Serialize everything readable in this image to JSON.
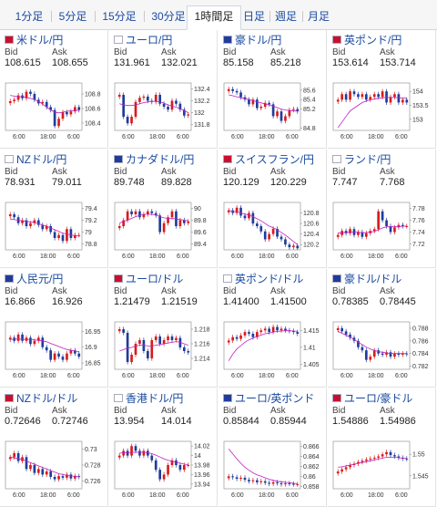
{
  "tabs": [
    {
      "label": "1分足",
      "active": false
    },
    {
      "label": "5分足",
      "active": false
    },
    {
      "label": "15分足",
      "active": false
    },
    {
      "label": "30分足",
      "active": false
    },
    {
      "label": "1時間足",
      "active": true
    },
    {
      "label": "日足",
      "active": false
    },
    {
      "label": "週足",
      "active": false
    },
    {
      "label": "月足",
      "active": false
    }
  ],
  "bid_label": "Bid",
  "ask_label": "Ask",
  "x_ticks": [
    "6:00",
    "18:00",
    "6:00"
  ],
  "colors": {
    "up": "#d81b1b",
    "down": "#1f3c9c",
    "ma": "#c020c0",
    "link": "#1a4aa0"
  },
  "pairs": [
    {
      "title": "米ドル/円",
      "bid": "108.615",
      "ask": "108.655",
      "y_ticks": [
        "108.8",
        "108.6",
        "108.4"
      ],
      "y_range": [
        108.3,
        108.95
      ],
      "close": [
        108.7,
        108.72,
        108.78,
        108.74,
        108.83,
        108.8,
        108.72,
        108.67,
        108.69,
        108.62,
        108.58,
        108.36,
        108.46,
        108.55,
        108.52,
        108.56,
        108.62,
        108.58
      ],
      "ma": [
        108.78,
        108.77,
        108.76,
        108.76,
        108.75,
        108.74,
        108.72,
        108.7,
        108.66,
        108.62,
        108.58,
        108.55,
        108.54,
        108.55,
        108.56,
        108.57,
        108.57,
        108.58
      ]
    },
    {
      "title": "ユーロ/円",
      "bid": "131.961",
      "ask": "132.021",
      "y_ticks": [
        "132.4",
        "132.2",
        "132",
        "131.8"
      ],
      "y_range": [
        131.7,
        132.5
      ],
      "close": [
        132.3,
        131.93,
        131.82,
        131.93,
        132.18,
        132.25,
        132.27,
        132.2,
        132.18,
        132.3,
        132.15,
        132.1,
        132.05,
        132.2,
        132.15,
        132.05,
        131.95,
        131.97
      ],
      "ma": [
        132.15,
        132.13,
        132.12,
        132.12,
        132.13,
        132.15,
        132.17,
        132.18,
        132.19,
        132.19,
        132.18,
        132.16,
        132.13,
        132.11,
        132.09,
        132.07,
        132.03,
        132.0
      ]
    },
    {
      "title": "豪ドル/円",
      "bid": "85.158",
      "ask": "85.218",
      "y_ticks": [
        "85.6",
        "85.4",
        "85.2",
        "84.8"
      ],
      "y_range": [
        84.75,
        85.75
      ],
      "close": [
        85.62,
        85.58,
        85.55,
        85.45,
        85.4,
        85.3,
        85.4,
        85.22,
        85.25,
        85.33,
        85.3,
        85.05,
        85.15,
        84.95,
        85.05,
        85.18,
        85.2,
        85.15
      ],
      "ma": [
        85.5,
        85.48,
        85.46,
        85.44,
        85.42,
        85.4,
        85.38,
        85.35,
        85.33,
        85.31,
        85.29,
        85.26,
        85.23,
        85.2,
        85.18,
        85.17,
        85.16,
        85.16
      ]
    },
    {
      "title": "英ポンド/円",
      "bid": "153.614",
      "ask": "153.714",
      "y_ticks": [
        "154",
        "153.5",
        "153"
      ],
      "y_range": [
        152.6,
        154.3
      ],
      "close": [
        153.7,
        153.9,
        153.7,
        154.0,
        153.9,
        153.8,
        153.9,
        153.7,
        153.8,
        153.9,
        153.8,
        154.0,
        153.6,
        153.8,
        153.9,
        153.6,
        153.7,
        153.6
      ],
      "ma": [
        152.7,
        152.9,
        153.1,
        153.3,
        153.4,
        153.5,
        153.6,
        153.65,
        153.7,
        153.72,
        153.75,
        153.77,
        153.78,
        153.78,
        153.78,
        153.77,
        153.76,
        153.75
      ]
    },
    {
      "title": "NZドル/円",
      "bid": "78.931",
      "ask": "79.011",
      "y_ticks": [
        "79.4",
        "79.2",
        "79",
        "78.8"
      ],
      "y_range": [
        78.7,
        79.5
      ],
      "close": [
        79.3,
        79.25,
        79.15,
        79.2,
        79.1,
        79.15,
        79.2,
        79.12,
        79.05,
        79.1,
        79.0,
        78.9,
        78.95,
        78.85,
        79.05,
        78.9,
        78.95,
        78.95
      ],
      "ma": [
        79.22,
        79.21,
        79.2,
        79.19,
        79.18,
        79.17,
        79.16,
        79.14,
        79.12,
        79.1,
        79.07,
        79.04,
        79.01,
        78.98,
        78.97,
        78.95,
        78.94,
        78.94
      ]
    },
    {
      "title": "カナダドル/円",
      "bid": "89.748",
      "ask": "89.828",
      "y_ticks": [
        "90",
        "89.8",
        "89.6",
        "89.4"
      ],
      "y_range": [
        89.3,
        90.1
      ],
      "close": [
        89.7,
        89.8,
        89.95,
        89.9,
        89.95,
        89.85,
        89.9,
        89.95,
        89.92,
        89.88,
        89.6,
        89.75,
        89.85,
        89.95,
        89.7,
        89.8,
        89.75,
        89.78
      ],
      "ma": [
        89.75,
        89.78,
        89.8,
        89.83,
        89.86,
        89.88,
        89.9,
        89.9,
        89.9,
        89.89,
        89.86,
        89.84,
        89.83,
        89.83,
        89.82,
        89.81,
        89.8,
        89.79
      ]
    },
    {
      "title": "スイスフラン/円",
      "bid": "120.129",
      "ask": "120.229",
      "y_ticks": [
        "120.8",
        "120.6",
        "120.4",
        "120.2"
      ],
      "y_range": [
        120.1,
        121.0
      ],
      "close": [
        120.85,
        120.8,
        120.9,
        120.75,
        120.7,
        120.8,
        120.6,
        120.55,
        120.45,
        120.3,
        120.4,
        120.5,
        120.35,
        120.3,
        120.2,
        120.15,
        120.18,
        120.13
      ],
      "ma": [
        120.85,
        120.83,
        120.82,
        120.8,
        120.78,
        120.76,
        120.73,
        120.69,
        120.65,
        120.6,
        120.55,
        120.52,
        120.48,
        120.43,
        120.38,
        120.32,
        120.26,
        120.2
      ]
    },
    {
      "title": "ランド/円",
      "bid": "7.747",
      "ask": "7.768",
      "y_ticks": [
        "7.78",
        "7.76",
        "7.74",
        "7.72"
      ],
      "y_range": [
        7.71,
        7.79
      ],
      "close": [
        7.735,
        7.742,
        7.738,
        7.745,
        7.735,
        7.74,
        7.732,
        7.738,
        7.742,
        7.745,
        7.775,
        7.76,
        7.75,
        7.74,
        7.748,
        7.752,
        7.75,
        7.75
      ],
      "ma": [
        7.738,
        7.739,
        7.739,
        7.74,
        7.74,
        7.74,
        7.739,
        7.739,
        7.74,
        7.741,
        7.744,
        7.747,
        7.749,
        7.749,
        7.749,
        7.749,
        7.75,
        7.75
      ]
    },
    {
      "title": "人民元/円",
      "bid": "16.866",
      "ask": "16.926",
      "y_ticks": [
        "16.95",
        "16.9",
        "16.85"
      ],
      "y_range": [
        16.83,
        16.98
      ],
      "close": [
        16.93,
        16.92,
        16.94,
        16.92,
        16.93,
        16.91,
        16.92,
        16.93,
        16.9,
        16.89,
        16.86,
        16.88,
        16.87,
        16.86,
        16.88,
        16.89,
        16.88,
        16.87
      ],
      "ma": [
        16.925,
        16.925,
        16.926,
        16.925,
        16.925,
        16.924,
        16.923,
        16.922,
        16.92,
        16.917,
        16.912,
        16.907,
        16.902,
        16.897,
        16.893,
        16.89,
        16.888,
        16.886
      ]
    },
    {
      "title": "ユーロ/ドル",
      "bid": "1.21479",
      "ask": "1.21519",
      "y_ticks": [
        "1.218",
        "1.216",
        "1.214"
      ],
      "y_range": [
        1.2125,
        1.219
      ],
      "close": [
        1.218,
        1.2175,
        1.2135,
        1.2145,
        1.216,
        1.2165,
        1.215,
        1.214,
        1.2165,
        1.217,
        1.216,
        1.2165,
        1.217,
        1.2165,
        1.2168,
        1.2155,
        1.215,
        1.2148
      ],
      "ma": [
        1.215,
        1.2152,
        1.2154,
        1.2155,
        1.2157,
        1.2158,
        1.2158,
        1.2157,
        1.2157,
        1.2158,
        1.2159,
        1.216,
        1.2161,
        1.2162,
        1.2163,
        1.2162,
        1.216,
        1.2158
      ]
    },
    {
      "title": "英ポンド/ドル",
      "bid": "1.41400",
      "ask": "1.41500",
      "y_ticks": [
        "1.415",
        "1.41",
        "1.405"
      ],
      "y_range": [
        1.4035,
        1.4175
      ],
      "close": [
        1.412,
        1.413,
        1.4125,
        1.4135,
        1.4145,
        1.414,
        1.413,
        1.4145,
        1.415,
        1.4155,
        1.4145,
        1.416,
        1.415,
        1.4155,
        1.415,
        1.4148,
        1.4145,
        1.414
      ],
      "ma": [
        1.406,
        1.408,
        1.4095,
        1.4105,
        1.4115,
        1.4122,
        1.4127,
        1.4132,
        1.4136,
        1.414,
        1.4142,
        1.4145,
        1.4147,
        1.4148,
        1.4149,
        1.4149,
        1.4148,
        1.4147
      ]
    },
    {
      "title": "豪ドル/ドル",
      "bid": "0.78385",
      "ask": "0.78445",
      "y_ticks": [
        "0.788",
        "0.786",
        "0.784",
        "0.782"
      ],
      "y_range": [
        0.7815,
        0.789
      ],
      "close": [
        0.788,
        0.7875,
        0.787,
        0.7865,
        0.786,
        0.785,
        0.7845,
        0.783,
        0.7835,
        0.7845,
        0.784,
        0.7838,
        0.7842,
        0.7835,
        0.784,
        0.7838,
        0.784,
        0.7839
      ],
      "ma": [
        0.7875,
        0.7872,
        0.7869,
        0.7866,
        0.7862,
        0.7858,
        0.7854,
        0.785,
        0.7847,
        0.7845,
        0.7843,
        0.7842,
        0.7841,
        0.784,
        0.784,
        0.784,
        0.784,
        0.784
      ]
    },
    {
      "title": "NZドル/ドル",
      "bid": "0.72646",
      "ask": "0.72746",
      "y_ticks": [
        "0.73",
        "0.728",
        "0.726"
      ],
      "y_range": [
        0.725,
        0.731
      ],
      "close": [
        0.729,
        0.7295,
        0.7285,
        0.729,
        0.7275,
        0.728,
        0.727,
        0.7275,
        0.7268,
        0.7272,
        0.7265,
        0.7262,
        0.7266,
        0.7264,
        0.7268,
        0.7263,
        0.7266,
        0.7265
      ],
      "ma": [
        0.729,
        0.7289,
        0.7288,
        0.7287,
        0.7285,
        0.7283,
        0.7281,
        0.7279,
        0.7277,
        0.7275,
        0.7273,
        0.7271,
        0.7269,
        0.7268,
        0.7267,
        0.7266,
        0.7266,
        0.7265
      ]
    },
    {
      "title": "香港ドル/円",
      "bid": "13.954",
      "ask": "14.014",
      "y_ticks": [
        "14.02",
        "14",
        "13.98",
        "13.96",
        "13.94"
      ],
      "y_range": [
        13.93,
        14.03
      ],
      "close": [
        14.0,
        14.01,
        14.0,
        14.02,
        14.01,
        14.0,
        14.01,
        14.0,
        13.99,
        13.97,
        13.95,
        13.96,
        13.98,
        13.99,
        13.98,
        13.97,
        13.98,
        13.98
      ],
      "ma": [
        14.005,
        14.006,
        14.006,
        14.007,
        14.007,
        14.007,
        14.007,
        14.006,
        14.004,
        14.001,
        13.997,
        13.993,
        13.99,
        13.988,
        13.986,
        13.984,
        13.982,
        13.981
      ]
    },
    {
      "title": "ユーロ/英ポンド",
      "bid": "0.85844",
      "ask": "0.85944",
      "y_ticks": [
        "0.866",
        "0.864",
        "0.862",
        "0.86",
        "0.858"
      ],
      "y_range": [
        0.8575,
        0.867
      ],
      "close": [
        0.86,
        0.8598,
        0.8595,
        0.8597,
        0.8593,
        0.859,
        0.8592,
        0.8588,
        0.859,
        0.8587,
        0.8585,
        0.8588,
        0.8586,
        0.8584,
        0.8586,
        0.8585,
        0.8584,
        0.8584
      ],
      "ma": [
        0.8655,
        0.8645,
        0.8635,
        0.8626,
        0.8618,
        0.8612,
        0.8607,
        0.8603,
        0.86,
        0.8597,
        0.8594,
        0.8592,
        0.859,
        0.8589,
        0.8588,
        0.8587,
        0.8586,
        0.8585
      ]
    },
    {
      "title": "ユーロ/豪ドル",
      "bid": "1.54886",
      "ask": "1.54986",
      "y_ticks": [
        "1.55",
        "1.545"
      ],
      "y_range": [
        1.542,
        1.553
      ],
      "close": [
        1.546,
        1.5465,
        1.547,
        1.5475,
        1.5478,
        1.5482,
        1.5485,
        1.5488,
        1.549,
        1.5492,
        1.5495,
        1.55,
        1.5505,
        1.5498,
        1.5495,
        1.5492,
        1.549,
        1.5489
      ],
      "ma": [
        1.547,
        1.5471,
        1.5473,
        1.5475,
        1.5477,
        1.5479,
        1.5481,
        1.5483,
        1.5485,
        1.5487,
        1.5489,
        1.5491,
        1.5493,
        1.5493,
        1.5493,
        1.5492,
        1.5491,
        1.549
      ]
    }
  ]
}
